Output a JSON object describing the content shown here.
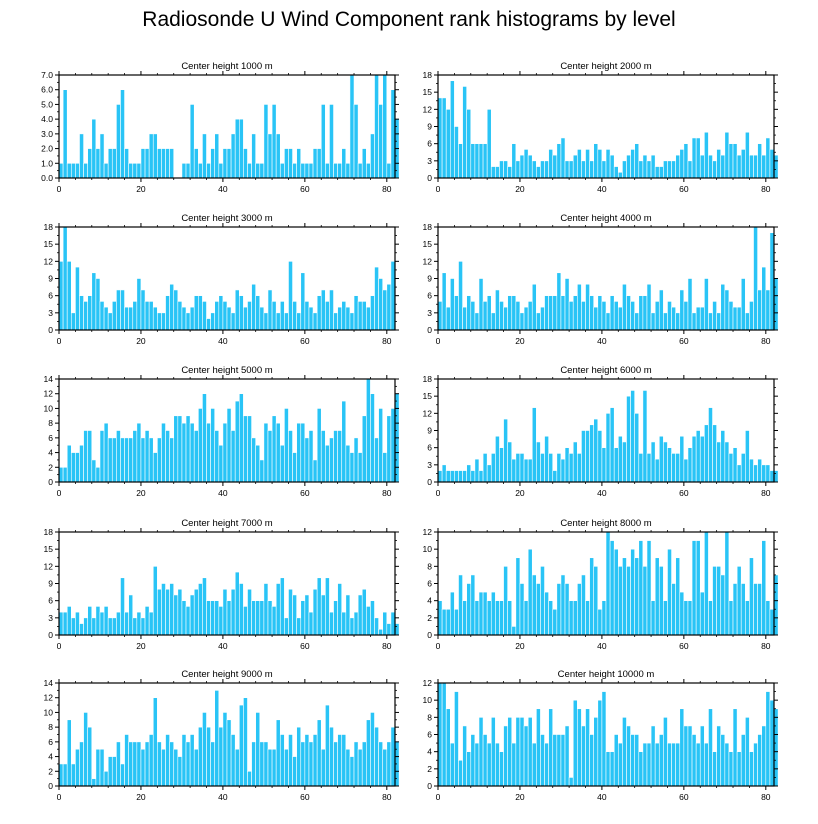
{
  "title": "Radiosonde U Wind Component rank histograms by level",
  "chart_data": [
    {
      "type": "bar",
      "title": "Center height 1000 m",
      "ylim": [
        0,
        7
      ],
      "yticks": [
        "0.0",
        "1.0",
        "2.0",
        "3.0",
        "4.0",
        "5.0",
        "6.0",
        "7.0"
      ],
      "xlim": [
        0,
        82
      ],
      "xticks": [
        0,
        20,
        40,
        60,
        80
      ],
      "values": [
        1,
        6,
        1,
        1,
        1,
        3,
        1,
        2,
        4,
        2,
        3,
        1,
        2,
        2,
        5,
        6,
        2,
        1,
        1,
        1,
        2,
        2,
        3,
        3,
        2,
        2,
        2,
        2,
        0,
        0,
        1,
        1,
        5,
        2,
        1,
        3,
        1,
        2,
        3,
        1,
        2,
        2,
        3,
        4,
        4,
        2,
        1,
        3,
        1,
        1,
        5,
        3,
        5,
        3,
        1,
        2,
        2,
        1,
        2,
        1,
        1,
        1,
        2,
        2,
        5,
        1,
        5,
        1,
        1,
        2,
        1,
        7,
        5,
        1,
        2,
        1,
        3,
        7,
        5,
        7,
        1,
        6,
        4
      ]
    },
    {
      "type": "bar",
      "title": "Center height 2000 m",
      "ylim": [
        0,
        18
      ],
      "yticks": [
        "0",
        "3",
        "6",
        "9",
        "12",
        "15",
        "18"
      ],
      "xlim": [
        0,
        82
      ],
      "xticks": [
        0,
        20,
        40,
        60,
        80
      ],
      "values": [
        14,
        14,
        12,
        17,
        9,
        6,
        16,
        12,
        6,
        6,
        6,
        6,
        12,
        2,
        2,
        3,
        3,
        2,
        6,
        3,
        4,
        5,
        4,
        3,
        2,
        3,
        3,
        5,
        4,
        6,
        7,
        3,
        3,
        4,
        5,
        3,
        5,
        3,
        6,
        5,
        3,
        5,
        4,
        2,
        1,
        3,
        4,
        5,
        6,
        3,
        4,
        3,
        4,
        2,
        2,
        3,
        3,
        3,
        4,
        5,
        6,
        3,
        7,
        7,
        4,
        8,
        4,
        3,
        5,
        4,
        8,
        6,
        6,
        4,
        5,
        8,
        4,
        4,
        6,
        4,
        7,
        5,
        4
      ]
    },
    {
      "type": "bar",
      "title": "Center height 3000 m",
      "ylim": [
        0,
        18
      ],
      "yticks": [
        "0",
        "3",
        "6",
        "9",
        "12",
        "15",
        "18"
      ],
      "xlim": [
        0,
        82
      ],
      "xticks": [
        0,
        20,
        40,
        60,
        80
      ],
      "values": [
        12,
        18,
        12,
        3,
        11,
        6,
        5,
        6,
        10,
        9,
        5,
        4,
        3,
        5,
        7,
        7,
        4,
        4,
        5,
        9,
        7,
        5,
        5,
        4,
        3,
        3,
        6,
        8,
        7,
        5,
        4,
        3,
        4,
        6,
        6,
        5,
        2,
        3,
        5,
        6,
        5,
        4,
        3,
        7,
        6,
        4,
        5,
        8,
        6,
        4,
        3,
        7,
        5,
        3,
        5,
        3,
        12,
        5,
        3,
        10,
        5,
        4,
        3,
        6,
        7,
        5,
        7,
        3,
        4,
        5,
        4,
        3,
        6,
        5,
        5,
        4,
        6,
        11,
        9,
        7,
        8,
        12
      ]
    },
    {
      "type": "bar",
      "title": "Center height 4000 m",
      "ylim": [
        0,
        18
      ],
      "yticks": [
        "0",
        "3",
        "6",
        "9",
        "12",
        "15",
        "18"
      ],
      "xlim": [
        0,
        82
      ],
      "xticks": [
        0,
        20,
        40,
        60,
        80
      ],
      "values": [
        5,
        10,
        4,
        9,
        6,
        12,
        4,
        6,
        5,
        3,
        9,
        5,
        6,
        3,
        7,
        5,
        4,
        6,
        6,
        5,
        3,
        4,
        5,
        8,
        3,
        4,
        6,
        6,
        6,
        10,
        6,
        9,
        5,
        6,
        8,
        5,
        8,
        6,
        4,
        6,
        5,
        3,
        6,
        5,
        4,
        8,
        6,
        5,
        3,
        6,
        6,
        8,
        3,
        5,
        7,
        3,
        5,
        4,
        3,
        7,
        5,
        9,
        3,
        4,
        4,
        9,
        3,
        5,
        3,
        8,
        7,
        5,
        4,
        4,
        9,
        3,
        5,
        18,
        7,
        11,
        7,
        17,
        9
      ]
    },
    {
      "type": "bar",
      "title": "Center height 5000 m",
      "ylim": [
        0,
        14
      ],
      "yticks": [
        "0",
        "2",
        "4",
        "6",
        "8",
        "10",
        "12",
        "14"
      ],
      "xlim": [
        0,
        82
      ],
      "xticks": [
        0,
        20,
        40,
        60,
        80
      ],
      "values": [
        2,
        2,
        5,
        4,
        4,
        5,
        7,
        7,
        3,
        2,
        7,
        8,
        6,
        6,
        7,
        6,
        6,
        6,
        7,
        8,
        6,
        7,
        6,
        4,
        6,
        8,
        7,
        6,
        9,
        9,
        8,
        9,
        8,
        7,
        10,
        12,
        8,
        10,
        7,
        5,
        8,
        10,
        7,
        11,
        12,
        9,
        9,
        6,
        5,
        3,
        8,
        7,
        9,
        8,
        5,
        10,
        7,
        4,
        8,
        8,
        6,
        7,
        3,
        10,
        7,
        5,
        6,
        7,
        7,
        11,
        5,
        4,
        6,
        4,
        9,
        14,
        12,
        6,
        10,
        4,
        9,
        10,
        12
      ]
    },
    {
      "type": "bar",
      "title": "Center height 6000 m",
      "ylim": [
        0,
        18
      ],
      "yticks": [
        "0",
        "3",
        "6",
        "9",
        "12",
        "15",
        "18"
      ],
      "xlim": [
        0,
        82
      ],
      "xticks": [
        0,
        20,
        40,
        60,
        80
      ],
      "values": [
        2,
        3,
        2,
        2,
        2,
        2,
        2,
        3,
        2,
        4,
        2,
        5,
        3,
        5,
        8,
        6,
        11,
        7,
        4,
        5,
        5,
        4,
        4,
        13,
        7,
        5,
        8,
        5,
        2,
        5,
        4,
        6,
        5,
        7,
        5,
        9,
        9,
        10,
        11,
        9,
        6,
        12,
        13,
        6,
        8,
        7,
        15,
        16,
        12,
        5,
        16,
        5,
        7,
        4,
        8,
        7,
        6,
        5,
        5,
        8,
        4,
        6,
        8,
        9,
        8,
        10,
        13,
        10,
        7,
        9,
        7,
        5,
        6,
        3,
        5,
        9,
        4,
        3,
        4,
        3,
        3,
        2,
        2
      ]
    },
    {
      "type": "bar",
      "title": "Center height 7000 m",
      "ylim": [
        0,
        18
      ],
      "yticks": [
        "0",
        "3",
        "6",
        "9",
        "12",
        "15",
        "18"
      ],
      "xlim": [
        0,
        82
      ],
      "xticks": [
        0,
        20,
        40,
        60,
        80
      ],
      "values": [
        4,
        4,
        5,
        3,
        4,
        2,
        3,
        5,
        3,
        5,
        4,
        5,
        3,
        3,
        4,
        10,
        4,
        7,
        3,
        4,
        3,
        5,
        4,
        12,
        8,
        9,
        8,
        9,
        7,
        8,
        6,
        5,
        7,
        8,
        9,
        10,
        6,
        6,
        6,
        5,
        8,
        6,
        8,
        11,
        9,
        5,
        8,
        6,
        6,
        6,
        9,
        6,
        5,
        9,
        10,
        3,
        8,
        7,
        3,
        6,
        7,
        4,
        8,
        10,
        7,
        10,
        4,
        6,
        9,
        4,
        7,
        3,
        4,
        7,
        8,
        5,
        6,
        3,
        1,
        4,
        2,
        4,
        2
      ]
    },
    {
      "type": "bar",
      "title": "Center height 8000 m",
      "ylim": [
        0,
        12
      ],
      "yticks": [
        "0",
        "2",
        "4",
        "6",
        "8",
        "10",
        "12"
      ],
      "xlim": [
        0,
        82
      ],
      "xticks": [
        0,
        20,
        40,
        60,
        80
      ],
      "values": [
        4,
        3,
        3,
        5,
        3,
        7,
        4,
        6,
        7,
        4,
        5,
        5,
        4,
        5,
        4,
        4,
        8,
        4,
        1,
        9,
        6,
        4,
        10,
        7,
        6,
        8,
        5,
        4,
        3,
        6,
        7,
        6,
        4,
        4,
        6,
        7,
        4,
        9,
        8,
        3,
        4,
        12,
        11,
        10,
        8,
        9,
        8,
        10,
        9,
        11,
        8,
        11,
        4,
        9,
        8,
        4,
        10,
        6,
        9,
        5,
        4,
        4,
        11,
        11,
        5,
        12,
        4,
        8,
        8,
        7,
        12,
        4,
        6,
        8,
        6,
        4,
        9,
        6,
        6,
        11,
        4,
        3,
        7
      ]
    },
    {
      "type": "bar",
      "title": "Center height 9000 m",
      "ylim": [
        0,
        14
      ],
      "yticks": [
        "0",
        "2",
        "4",
        "6",
        "8",
        "10",
        "12",
        "14"
      ],
      "xlim": [
        0,
        82
      ],
      "xticks": [
        0,
        20,
        40,
        60,
        80
      ],
      "values": [
        3,
        3,
        9,
        3,
        5,
        6,
        10,
        8,
        1,
        5,
        5,
        2,
        4,
        4,
        6,
        3,
        7,
        6,
        6,
        6,
        5,
        6,
        7,
        12,
        6,
        5,
        7,
        6,
        5,
        4,
        7,
        6,
        7,
        5,
        8,
        10,
        8,
        6,
        13,
        8,
        10,
        9,
        7,
        5,
        11,
        12,
        2,
        6,
        10,
        6,
        6,
        5,
        5,
        9,
        7,
        5,
        7,
        4,
        8,
        6,
        7,
        6,
        7,
        9,
        5,
        11,
        8,
        6,
        7,
        7,
        5,
        4,
        6,
        5,
        6,
        9,
        10,
        8,
        6,
        5,
        6,
        8,
        6
      ]
    },
    {
      "type": "bar",
      "title": "Center height 10000 m",
      "ylim": [
        0,
        12
      ],
      "yticks": [
        "0",
        "2",
        "4",
        "6",
        "8",
        "10",
        "12"
      ],
      "xlim": [
        0,
        82
      ],
      "xticks": [
        0,
        20,
        40,
        60,
        80
      ],
      "values": [
        12,
        12,
        9,
        5,
        11,
        3,
        7,
        4,
        6,
        5,
        8,
        6,
        5,
        8,
        5,
        4,
        7,
        8,
        5,
        8,
        8,
        7,
        8,
        5,
        9,
        6,
        5,
        9,
        6,
        6,
        6,
        7,
        1,
        10,
        9,
        7,
        9,
        6,
        8,
        10,
        11,
        4,
        4,
        6,
        5,
        8,
        7,
        6,
        6,
        4,
        5,
        5,
        7,
        5,
        6,
        8,
        5,
        5,
        5,
        9,
        7,
        7,
        6,
        5,
        7,
        5,
        9,
        4,
        7,
        6,
        5,
        4,
        9,
        4,
        6,
        8,
        4,
        5,
        6,
        7,
        11,
        10,
        9
      ]
    }
  ],
  "colors": {
    "bar": "#29c4f6",
    "bar_edge": "#ffffff",
    "axis": "#000000"
  }
}
